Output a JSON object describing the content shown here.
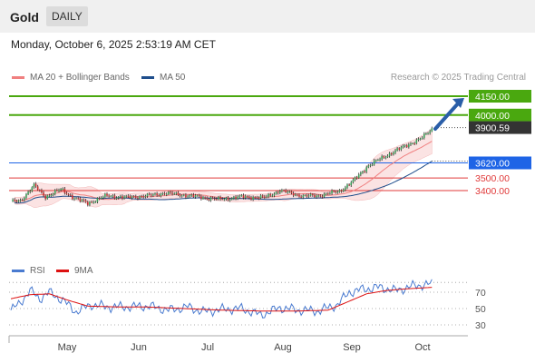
{
  "header": {
    "title": "Gold",
    "timeframe": "DAILY",
    "datetime": "Monday, October 6, 2025 2:53:19 AM CET"
  },
  "legend": {
    "ma20": "MA 20 + Bollinger Bands",
    "ma50": "MA 50",
    "credit": "Research © 2025 Trading Central",
    "ma20_color": "#f08080",
    "ma50_color": "#1f4e8c"
  },
  "rsi_legend": {
    "rsi": "RSI",
    "ma9": "9MA",
    "rsi_color": "#4a7bd0",
    "ma9_color": "#dd1111"
  },
  "chart_data": [
    {
      "type": "candlestick",
      "ylim": [
        3230,
        4200
      ],
      "x_tick_labels": [
        "May",
        "Jun",
        "Jul",
        "Aug",
        "Sep",
        "Oct"
      ],
      "levels": [
        {
          "value": 4150.0,
          "label": "4150.00",
          "kind": "target",
          "color": "#4aa80f"
        },
        {
          "value": 4000.0,
          "label": "4000.00",
          "kind": "resistance",
          "color": "#4aa80f"
        },
        {
          "value": 3900.59,
          "label": "3900.59",
          "kind": "last",
          "color": "#333333"
        },
        {
          "value": 3620.0,
          "label": "3620.00",
          "kind": "pivot",
          "color": "#1e64e6"
        },
        {
          "value": 3500.0,
          "label": "3500.00",
          "kind": "support",
          "color": "#e03a3a"
        },
        {
          "value": 3400.0,
          "label": "3400.00",
          "kind": "support",
          "color": "#e03a3a"
        }
      ],
      "segments": [
        [
          0,
          3310
        ],
        [
          5,
          3320
        ],
        [
          12,
          3440
        ],
        [
          18,
          3350
        ],
        [
          26,
          3410
        ],
        [
          33,
          3340
        ],
        [
          40,
          3300
        ],
        [
          50,
          3360
        ],
        [
          60,
          3345
        ],
        [
          72,
          3360
        ],
        [
          80,
          3380
        ],
        [
          92,
          3360
        ],
        [
          108,
          3330
        ],
        [
          120,
          3350
        ],
        [
          132,
          3345
        ],
        [
          140,
          3400
        ],
        [
          152,
          3355
        ],
        [
          160,
          3360
        ],
        [
          171,
          3395
        ],
        [
          178,
          3475
        ],
        [
          186,
          3600
        ],
        [
          198,
          3700
        ],
        [
          214,
          3820
        ],
        [
          219,
          3890
        ]
      ]
    },
    {
      "type": "line",
      "title": "RSI",
      "ylim": [
        20,
        85
      ],
      "y_tick_labels": [
        "70",
        "50",
        "30"
      ],
      "y_ticks": [
        70,
        50,
        30
      ],
      "segments_rsi": [
        [
          0,
          48
        ],
        [
          4,
          55
        ],
        [
          10,
          72
        ],
        [
          15,
          62
        ],
        [
          20,
          70
        ],
        [
          27,
          60
        ],
        [
          34,
          46
        ],
        [
          42,
          55
        ],
        [
          50,
          52
        ],
        [
          60,
          52
        ],
        [
          72,
          53
        ],
        [
          82,
          48
        ],
        [
          92,
          52
        ],
        [
          100,
          46
        ],
        [
          110,
          49
        ],
        [
          120,
          50
        ],
        [
          130,
          42
        ],
        [
          140,
          51
        ],
        [
          150,
          48
        ],
        [
          160,
          47
        ],
        [
          170,
          55
        ],
        [
          176,
          70
        ],
        [
          184,
          74
        ],
        [
          192,
          76
        ],
        [
          200,
          72
        ],
        [
          210,
          78
        ],
        [
          219,
          80
        ]
      ],
      "segments_ma9": [
        [
          0,
          62
        ],
        [
          10,
          67
        ],
        [
          20,
          68
        ],
        [
          30,
          60
        ],
        [
          40,
          53
        ],
        [
          55,
          52
        ],
        [
          70,
          52
        ],
        [
          90,
          50
        ],
        [
          110,
          48
        ],
        [
          130,
          47
        ],
        [
          150,
          47
        ],
        [
          165,
          48
        ],
        [
          175,
          58
        ],
        [
          185,
          68
        ],
        [
          195,
          72
        ],
        [
          205,
          74
        ],
        [
          219,
          76
        ]
      ]
    }
  ]
}
